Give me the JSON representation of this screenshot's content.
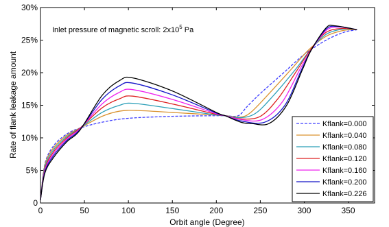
{
  "chart_data": {
    "type": "line",
    "xlabel": "Orbit angle (Degree)",
    "ylabel": "Rate of flank leakage amount",
    "annotation": {
      "text": "Inlet pressure of magnetic scroll: 2x10",
      "superscript": "5",
      "unit": " Pa"
    },
    "xlim": [
      0,
      380
    ],
    "ylim": [
      0,
      30
    ],
    "x_ticks": [
      0,
      50,
      100,
      150,
      200,
      250,
      300,
      350
    ],
    "y_ticks": [
      0,
      5,
      10,
      15,
      20,
      25,
      30
    ],
    "y_tick_labels": [
      "0",
      "5%",
      "10%",
      "15%",
      "20%",
      "25%",
      "30%"
    ],
    "legend_position": "bottom-right",
    "grid": false,
    "series": [
      {
        "name": "Kflank=0.000",
        "color": "#3c3cff",
        "dash": "dashed",
        "points": [
          [
            0,
            0.5
          ],
          [
            5,
            6
          ],
          [
            15,
            8.8
          ],
          [
            30,
            10.6
          ],
          [
            45,
            11.5
          ],
          [
            70,
            12.4
          ],
          [
            100,
            13
          ],
          [
            150,
            13.3
          ],
          [
            200,
            13.4
          ],
          [
            210,
            13.4
          ],
          [
            225,
            13.4
          ],
          [
            235,
            14.8
          ],
          [
            250,
            16.8
          ],
          [
            275,
            19.8
          ],
          [
            300,
            22.8
          ],
          [
            325,
            25
          ],
          [
            345,
            26.2
          ],
          [
            360,
            26.6
          ]
        ]
      },
      {
        "name": "Kflank=0.040",
        "color": "#d9922f",
        "dash": "solid",
        "points": [
          [
            0,
            0.5
          ],
          [
            5,
            5.8
          ],
          [
            15,
            8.5
          ],
          [
            30,
            10.4
          ],
          [
            45,
            11.5
          ],
          [
            70,
            13.3
          ],
          [
            90,
            14.1
          ],
          [
            110,
            14.2
          ],
          [
            150,
            13.9
          ],
          [
            200,
            13.5
          ],
          [
            210,
            13.4
          ],
          [
            228,
            13.2
          ],
          [
            240,
            14
          ],
          [
            260,
            16.8
          ],
          [
            285,
            20.5
          ],
          [
            305,
            23.5
          ],
          [
            325,
            25.6
          ],
          [
            345,
            26.5
          ],
          [
            360,
            26.6
          ]
        ]
      },
      {
        "name": "Kflank=0.080",
        "color": "#2b9fb8",
        "dash": "solid",
        "points": [
          [
            0,
            0.5
          ],
          [
            5,
            5.5
          ],
          [
            15,
            8.2
          ],
          [
            30,
            10.2
          ],
          [
            45,
            11.5
          ],
          [
            70,
            13.9
          ],
          [
            90,
            15
          ],
          [
            105,
            15.3
          ],
          [
            150,
            14.5
          ],
          [
            200,
            13.5
          ],
          [
            210,
            13.4
          ],
          [
            228,
            13.1
          ],
          [
            245,
            13.8
          ],
          [
            265,
            16.5
          ],
          [
            290,
            20.5
          ],
          [
            307,
            23.5
          ],
          [
            325,
            25.9
          ],
          [
            345,
            26.7
          ],
          [
            360,
            26.6
          ]
        ]
      },
      {
        "name": "Kflank=0.120",
        "color": "#dd2020",
        "dash": "solid",
        "points": [
          [
            0,
            0.5
          ],
          [
            5,
            5.2
          ],
          [
            15,
            7.9
          ],
          [
            30,
            10
          ],
          [
            45,
            11.5
          ],
          [
            70,
            14.6
          ],
          [
            90,
            16
          ],
          [
            105,
            16.4
          ],
          [
            150,
            15.2
          ],
          [
            200,
            13.6
          ],
          [
            210,
            13.4
          ],
          [
            228,
            12.9
          ],
          [
            250,
            13.3
          ],
          [
            270,
            16
          ],
          [
            290,
            20
          ],
          [
            307,
            23.5
          ],
          [
            325,
            26.2
          ],
          [
            345,
            26.8
          ],
          [
            360,
            26.6
          ]
        ]
      },
      {
        "name": "Kflank=0.160",
        "color": "#ee22ee",
        "dash": "solid",
        "points": [
          [
            0,
            0.5
          ],
          [
            5,
            5
          ],
          [
            15,
            7.6
          ],
          [
            30,
            9.8
          ],
          [
            45,
            11.4
          ],
          [
            70,
            15.2
          ],
          [
            90,
            17
          ],
          [
            105,
            17.4
          ],
          [
            150,
            15.9
          ],
          [
            200,
            13.7
          ],
          [
            210,
            13.4
          ],
          [
            228,
            12.8
          ],
          [
            252,
            12.8
          ],
          [
            275,
            15.5
          ],
          [
            295,
            20.5
          ],
          [
            308,
            23.5
          ],
          [
            325,
            26.5
          ],
          [
            340,
            27
          ],
          [
            360,
            26.6
          ]
        ]
      },
      {
        "name": "Kflank=0.200",
        "color": "#1515c8",
        "dash": "solid",
        "points": [
          [
            0,
            0.5
          ],
          [
            5,
            4.8
          ],
          [
            15,
            7.3
          ],
          [
            30,
            9.6
          ],
          [
            45,
            11.3
          ],
          [
            70,
            15.9
          ],
          [
            90,
            18
          ],
          [
            105,
            18.4
          ],
          [
            150,
            16.6
          ],
          [
            200,
            13.8
          ],
          [
            210,
            13.4
          ],
          [
            228,
            12.6
          ],
          [
            255,
            12.4
          ],
          [
            278,
            15
          ],
          [
            297,
            20.5
          ],
          [
            308,
            23.5
          ],
          [
            325,
            26.7
          ],
          [
            338,
            27.1
          ],
          [
            360,
            26.6
          ]
        ]
      },
      {
        "name": "Kflank=0.226",
        "color": "#000000",
        "dash": "solid",
        "points": [
          [
            0,
            0.5
          ],
          [
            5,
            4.6
          ],
          [
            15,
            7
          ],
          [
            30,
            9.4
          ],
          [
            45,
            11.2
          ],
          [
            70,
            16.5
          ],
          [
            90,
            18.8
          ],
          [
            105,
            19.2
          ],
          [
            150,
            17.2
          ],
          [
            200,
            13.9
          ],
          [
            210,
            13.4
          ],
          [
            228,
            12.4
          ],
          [
            240,
            12.2
          ],
          [
            260,
            12.2
          ],
          [
            280,
            15
          ],
          [
            298,
            20.5
          ],
          [
            308,
            23.5
          ],
          [
            325,
            26.9
          ],
          [
            335,
            27.2
          ],
          [
            360,
            26.6
          ]
        ]
      }
    ]
  }
}
